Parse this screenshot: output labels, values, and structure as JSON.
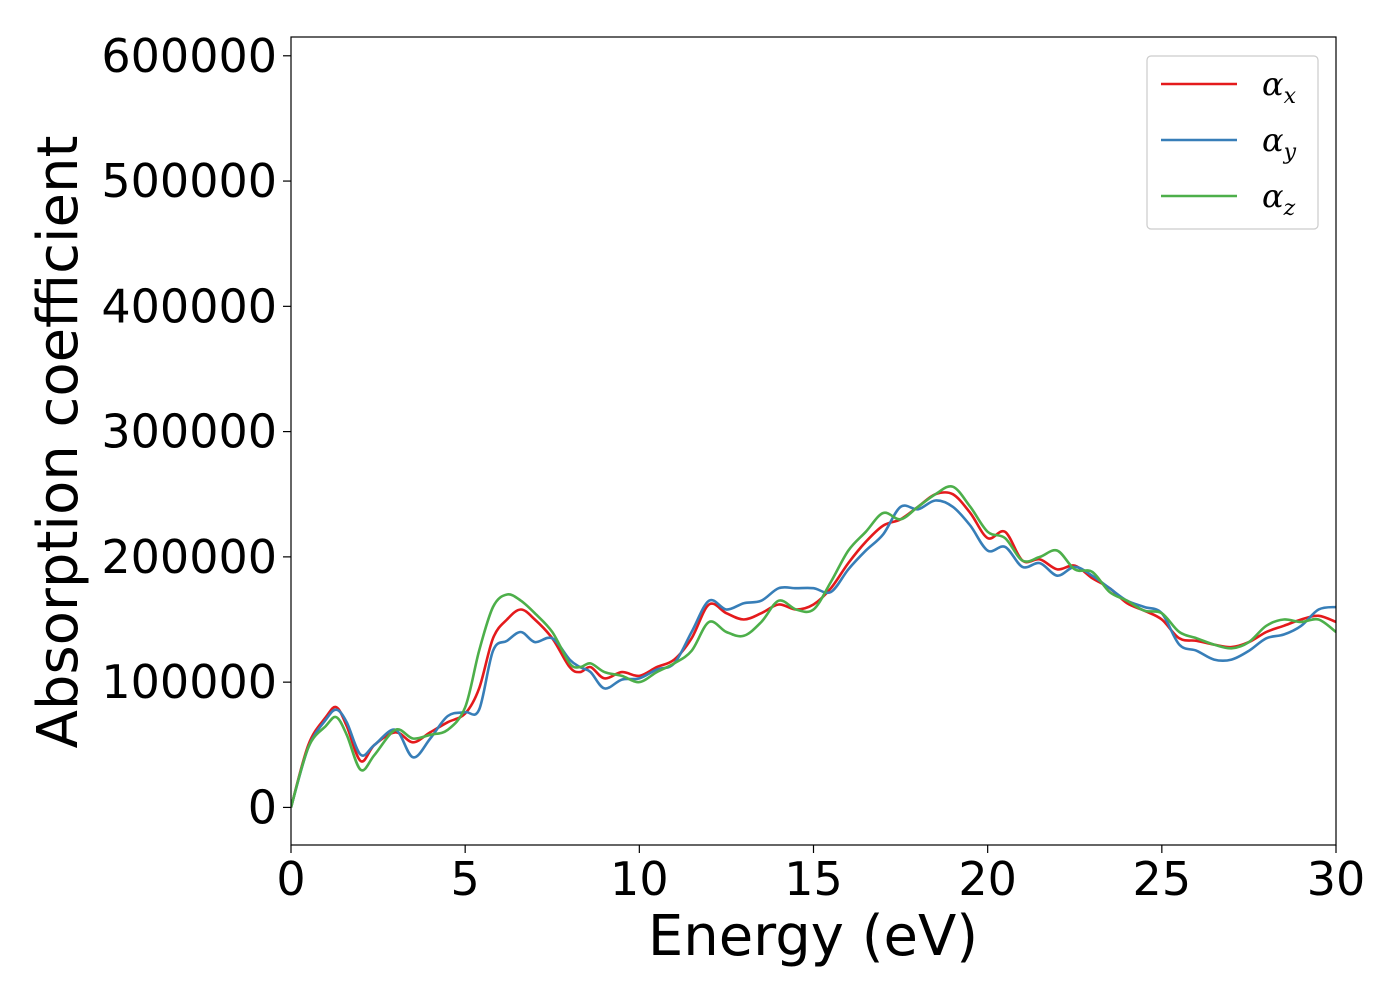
{
  "chart_data": {
    "type": "line",
    "title": "",
    "xlabel": "Energy (eV)",
    "ylabel": "Absorption coefficient",
    "xlim": [
      0,
      30
    ],
    "ylim": [
      -30000,
      615000
    ],
    "xticks": [
      0,
      5,
      10,
      15,
      20,
      25,
      30
    ],
    "yticks": [
      0,
      100000,
      200000,
      300000,
      400000,
      500000,
      600000
    ],
    "grid": false,
    "legend_position": "top-right",
    "series": [
      {
        "name": "α",
        "subscript": "x",
        "color": "#e41a1c",
        "x": [
          0,
          0.5,
          1.0,
          1.3,
          1.6,
          2.0,
          2.4,
          3.0,
          3.5,
          4.0,
          4.5,
          5.0,
          5.4,
          5.8,
          6.2,
          6.6,
          7.0,
          7.5,
          8.0,
          8.3,
          8.6,
          9.0,
          9.5,
          10.0,
          10.5,
          11.0,
          11.5,
          12.0,
          12.5,
          13.0,
          13.5,
          14.0,
          14.5,
          15.0,
          15.5,
          16.0,
          16.5,
          17.0,
          17.5,
          18.0,
          18.5,
          19.0,
          19.5,
          20.0,
          20.5,
          21.0,
          21.5,
          22.0,
          22.5,
          23.0,
          23.5,
          24.0,
          24.5,
          25.0,
          25.5,
          26.0,
          26.5,
          27.0,
          27.5,
          28.0,
          28.5,
          29.0,
          29.5,
          30.0
        ],
        "y": [
          0,
          50000,
          72000,
          80000,
          65000,
          37000,
          50000,
          60000,
          52000,
          60000,
          68000,
          75000,
          95000,
          135000,
          150000,
          158000,
          150000,
          135000,
          112000,
          108000,
          112000,
          103000,
          108000,
          105000,
          112000,
          118000,
          135000,
          162000,
          155000,
          150000,
          155000,
          162000,
          158000,
          162000,
          175000,
          195000,
          212000,
          225000,
          230000,
          240000,
          250000,
          250000,
          235000,
          215000,
          220000,
          197000,
          198000,
          190000,
          193000,
          183000,
          175000,
          163000,
          157000,
          150000,
          135000,
          133000,
          130000,
          128000,
          132000,
          140000,
          145000,
          150000,
          153000,
          148000
        ]
      },
      {
        "name": "α",
        "subscript": "y",
        "color": "#377eb8",
        "x": [
          0,
          0.5,
          1.0,
          1.3,
          1.6,
          2.0,
          2.4,
          3.0,
          3.5,
          4.0,
          4.5,
          5.0,
          5.4,
          5.8,
          6.2,
          6.6,
          7.0,
          7.5,
          8.0,
          8.3,
          8.6,
          9.0,
          9.5,
          10.0,
          10.5,
          11.0,
          11.5,
          12.0,
          12.5,
          13.0,
          13.5,
          14.0,
          14.5,
          15.0,
          15.5,
          16.0,
          16.5,
          17.0,
          17.5,
          18.0,
          18.5,
          19.0,
          19.5,
          20.0,
          20.5,
          21.0,
          21.5,
          22.0,
          22.5,
          23.0,
          23.5,
          24.0,
          24.5,
          25.0,
          25.5,
          26.0,
          26.5,
          27.0,
          27.5,
          28.0,
          28.5,
          29.0,
          29.5,
          30.0
        ],
        "y": [
          0,
          48000,
          70000,
          78000,
          68000,
          42000,
          50000,
          62000,
          40000,
          55000,
          73000,
          76000,
          78000,
          125000,
          133000,
          140000,
          132000,
          135000,
          118000,
          112000,
          108000,
          95000,
          102000,
          103000,
          110000,
          115000,
          140000,
          165000,
          158000,
          163000,
          165000,
          175000,
          175000,
          175000,
          172000,
          190000,
          205000,
          218000,
          240000,
          238000,
          245000,
          240000,
          225000,
          205000,
          208000,
          192000,
          195000,
          185000,
          192000,
          185000,
          175000,
          165000,
          160000,
          155000,
          130000,
          125000,
          118000,
          118000,
          125000,
          135000,
          138000,
          145000,
          158000,
          160000
        ]
      },
      {
        "name": "α",
        "subscript": "z",
        "color": "#4daf4a",
        "x": [
          0,
          0.5,
          1.0,
          1.3,
          1.6,
          2.0,
          2.4,
          3.0,
          3.5,
          4.0,
          4.5,
          5.0,
          5.4,
          5.8,
          6.2,
          6.6,
          7.0,
          7.5,
          8.0,
          8.3,
          8.6,
          9.0,
          9.5,
          10.0,
          10.5,
          11.0,
          11.5,
          12.0,
          12.5,
          13.0,
          13.5,
          14.0,
          14.5,
          15.0,
          15.5,
          16.0,
          16.5,
          17.0,
          17.5,
          18.0,
          18.5,
          19.0,
          19.5,
          20.0,
          20.5,
          21.0,
          21.5,
          22.0,
          22.5,
          23.0,
          23.5,
          24.0,
          24.5,
          25.0,
          25.5,
          26.0,
          26.5,
          27.0,
          27.5,
          28.0,
          28.5,
          29.0,
          29.5,
          30.0
        ],
        "y": [
          0,
          48000,
          65000,
          72000,
          58000,
          30000,
          42000,
          62000,
          55000,
          58000,
          62000,
          80000,
          125000,
          160000,
          170000,
          165000,
          155000,
          140000,
          115000,
          112000,
          115000,
          108000,
          105000,
          100000,
          108000,
          115000,
          125000,
          148000,
          140000,
          137000,
          148000,
          165000,
          158000,
          158000,
          180000,
          205000,
          220000,
          235000,
          230000,
          240000,
          250000,
          256000,
          240000,
          220000,
          215000,
          197000,
          200000,
          205000,
          190000,
          188000,
          172000,
          165000,
          157000,
          155000,
          140000,
          135000,
          130000,
          127000,
          132000,
          145000,
          150000,
          148000,
          150000,
          140000
        ]
      }
    ]
  }
}
